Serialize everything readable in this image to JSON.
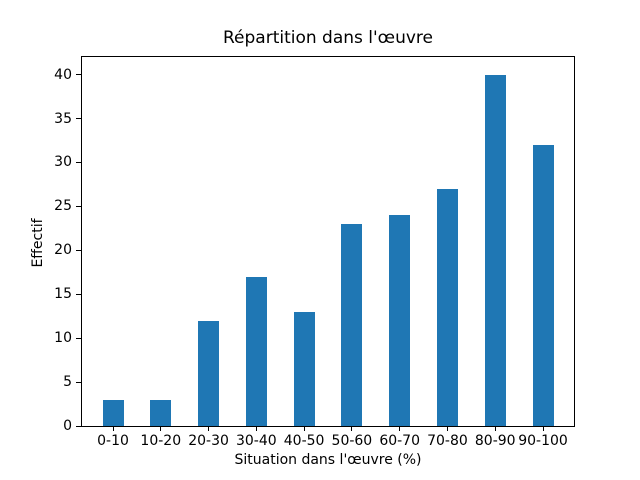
{
  "chart_data": {
    "type": "bar",
    "title": "Répartition dans l'œuvre",
    "xlabel": "Situation dans l'œuvre (%)",
    "ylabel": "Effectif",
    "categories": [
      "0-10",
      "10-20",
      "20-30",
      "30-40",
      "40-50",
      "50-60",
      "60-70",
      "70-80",
      "80-90",
      "90-100"
    ],
    "values": [
      3,
      3,
      12,
      17,
      13,
      23,
      24,
      27,
      40,
      32
    ],
    "ylim": [
      0,
      42
    ],
    "yticks": [
      0,
      5,
      10,
      15,
      20,
      25,
      30,
      35,
      40
    ],
    "bar_color": "#1f77b4",
    "grid": false,
    "legend": "none",
    "frame": "full-box"
  }
}
